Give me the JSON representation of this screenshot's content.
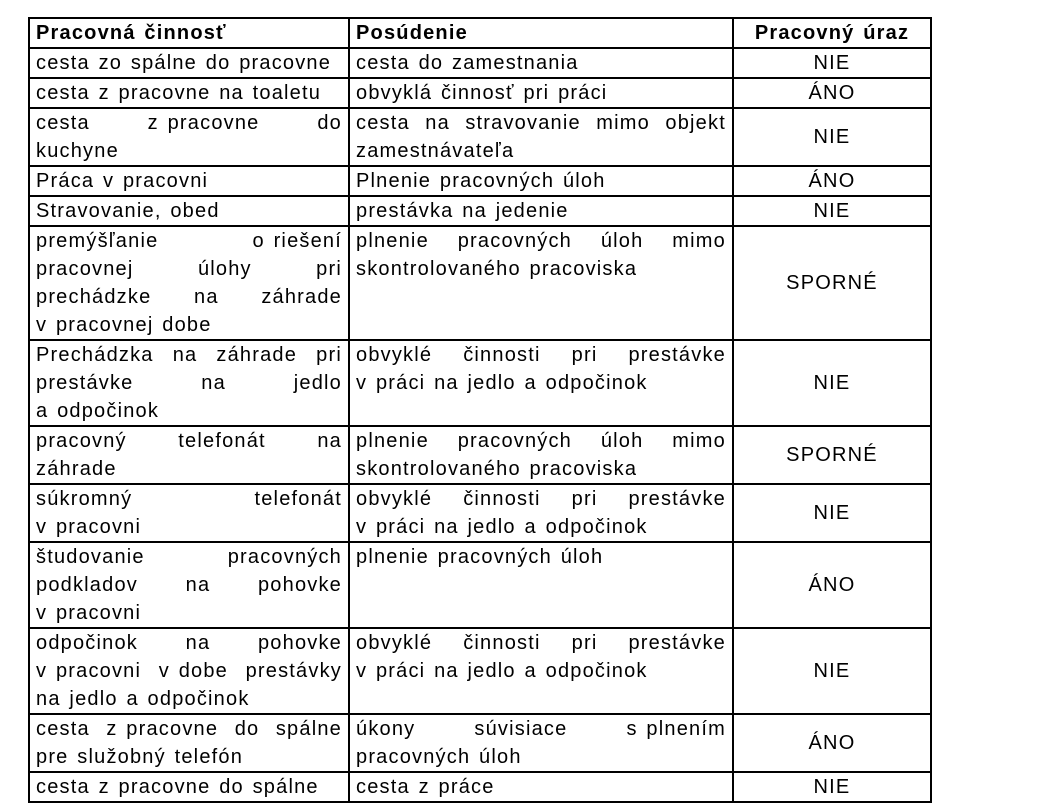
{
  "colors": {
    "border": "#000000",
    "text": "#000000",
    "background": "#ffffff"
  },
  "table": {
    "headers": [
      "Pracovná činnosť",
      "Posúdenie",
      "Pracovný úraz"
    ],
    "rows": [
      {
        "activity_lines": [
          "cesta zo spálne do pracovne"
        ],
        "assessment_lines": [
          "cesta do zamestnania"
        ],
        "verdict": "NIE"
      },
      {
        "activity_lines": [
          "cesta z pracovne na toaletu"
        ],
        "assessment_lines": [
          "obvyklá činnosť pri práci"
        ],
        "verdict": "ÁNO"
      },
      {
        "activity_lines": [
          "cesta z pracovne do",
          "kuchyne"
        ],
        "assessment_lines": [
          "cesta na stravovanie mimo objekt",
          "zamestnávateľa"
        ],
        "verdict": "NIE"
      },
      {
        "activity_lines": [
          "Práca v pracovni"
        ],
        "assessment_lines": [
          "Plnenie pracovných úloh"
        ],
        "verdict": "ÁNO"
      },
      {
        "activity_lines": [
          "Stravovanie, obed"
        ],
        "assessment_lines": [
          "prestávka na jedenie"
        ],
        "verdict": "NIE"
      },
      {
        "activity_lines": [
          "premýšľanie o riešení",
          "pracovnej úlohy pri",
          "prechádzke na záhrade",
          "v pracovnej dobe"
        ],
        "assessment_lines": [
          "plnenie pracovných úloh mimo",
          "skontrolovaného pracoviska"
        ],
        "verdict": "SPORNÉ"
      },
      {
        "activity_lines": [
          "Prechádzka na záhrade pri",
          "prestávke na jedlo",
          "a odpočinok"
        ],
        "assessment_lines": [
          "obvyklé činnosti pri prestávke",
          "v práci na jedlo a odpočinok"
        ],
        "verdict": "NIE"
      },
      {
        "activity_lines": [
          "pracovný telefonát na",
          "záhrade"
        ],
        "assessment_lines": [
          "plnenie pracovných úloh mimo",
          "skontrolovaného pracoviska"
        ],
        "verdict": "SPORNÉ"
      },
      {
        "activity_lines": [
          "súkromný telefonát",
          "v pracovni"
        ],
        "assessment_lines": [
          "obvyklé činnosti pri prestávke",
          "v práci na jedlo a odpočinok"
        ],
        "verdict": "NIE"
      },
      {
        "activity_lines": [
          "študovanie pracovných",
          "podkladov na pohovke",
          "v pracovni"
        ],
        "assessment_lines": [
          "plnenie pracovných úloh"
        ],
        "verdict": "ÁNO"
      },
      {
        "activity_lines": [
          "odpočinok na pohovke",
          "v pracovni v dobe prestávky",
          "na jedlo a odpočinok"
        ],
        "assessment_lines": [
          "obvyklé činnosti pri prestávke",
          "v práci na jedlo a odpočinok"
        ],
        "verdict": "NIE"
      },
      {
        "activity_lines": [
          "cesta z pracovne do spálne",
          "pre služobný telefón"
        ],
        "assessment_lines": [
          "úkony súvisiace s plnením",
          "pracovných úloh"
        ],
        "verdict": "ÁNO"
      },
      {
        "activity_lines": [
          "cesta z pracovne do spálne"
        ],
        "assessment_lines": [
          "cesta z práce"
        ],
        "verdict": "NIE"
      }
    ]
  }
}
